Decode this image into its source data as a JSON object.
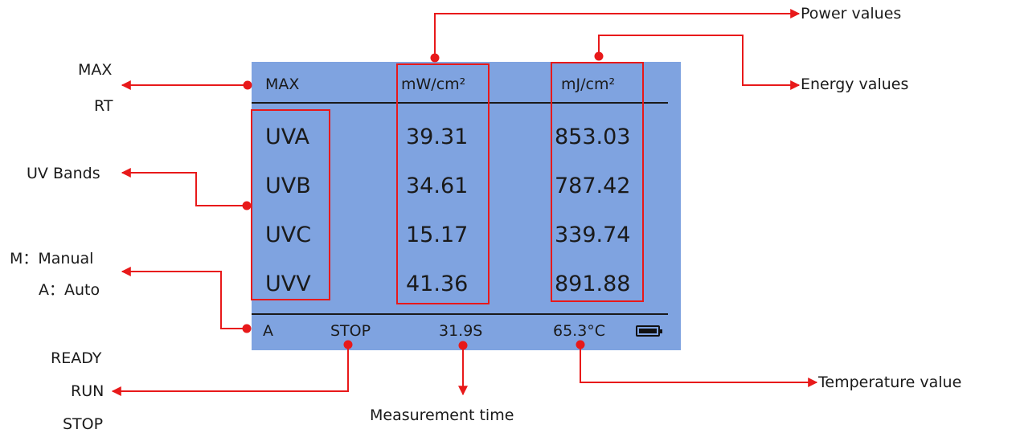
{
  "screen": {
    "header": {
      "mode": "MAX",
      "power_unit": "mW/cm²",
      "energy_unit": "mJ/cm²"
    },
    "rows": [
      {
        "band": "UVA",
        "power": "39.31",
        "energy": "853.03"
      },
      {
        "band": "UVB",
        "power": "34.61",
        "energy": "787.42"
      },
      {
        "band": "UVC",
        "power": "15.17",
        "energy": "339.74"
      },
      {
        "band": "UVV",
        "power": "41.36",
        "energy": "891.88"
      }
    ],
    "status": {
      "trigger_mode": "A",
      "state": "STOP",
      "time": "31.9S",
      "temperature": "65.3°C",
      "battery_icon": "battery-full-icon"
    }
  },
  "annotations": {
    "max_rt": [
      "MAX",
      "RT"
    ],
    "uv_bands": "UV Bands",
    "mode": [
      "M：Manual",
      "A：Auto"
    ],
    "state": [
      "READY",
      "RUN",
      "STOP"
    ],
    "measurement_time": "Measurement time",
    "power_values": "Power values",
    "energy_values": "Energy values",
    "temperature_value": "Temperature value"
  },
  "colors": {
    "screen_bg": "#7fa3e0",
    "callout": "#e8191a",
    "text": "#1a1a1a"
  }
}
